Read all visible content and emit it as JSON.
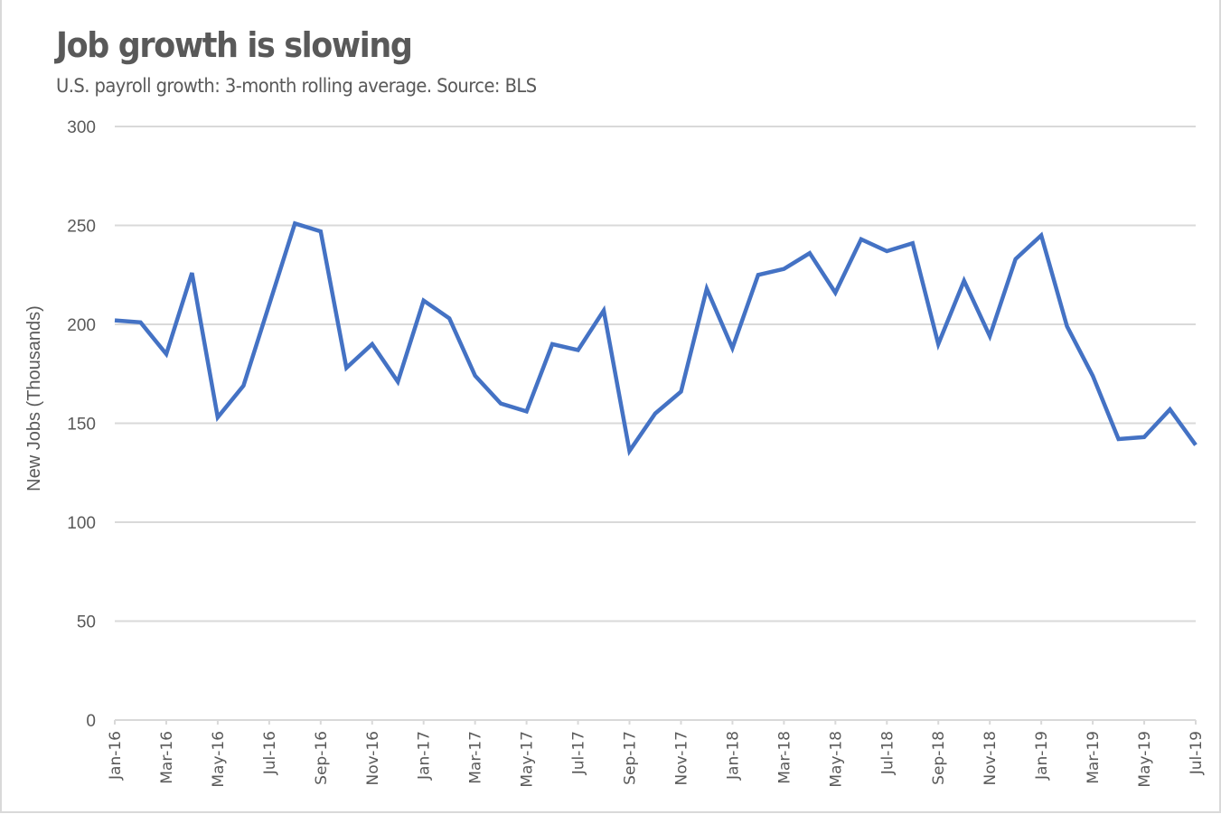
{
  "chart_data": {
    "type": "line",
    "title": "Job growth is slowing",
    "subtitle": "U.S. payroll growth: 3-month rolling average. Source: BLS",
    "xlabel": "",
    "ylabel": "New Jobs (Thousands)",
    "ylim": [
      0,
      300
    ],
    "yticks": [
      0,
      50,
      100,
      150,
      200,
      250,
      300
    ],
    "grid": true,
    "legend": "none",
    "line_color": "#4472C4",
    "x": [
      "Jan-16",
      "Feb-16",
      "Mar-16",
      "Apr-16",
      "May-16",
      "Jun-16",
      "Jul-16",
      "Aug-16",
      "Sep-16",
      "Oct-16",
      "Nov-16",
      "Dec-16",
      "Jan-17",
      "Feb-17",
      "Mar-17",
      "Apr-17",
      "May-17",
      "Jun-17",
      "Jul-17",
      "Aug-17",
      "Sep-17",
      "Oct-17",
      "Nov-17",
      "Dec-17",
      "Jan-18",
      "Feb-18",
      "Mar-18",
      "Apr-18",
      "May-18",
      "Jun-18",
      "Jul-18",
      "Aug-18",
      "Sep-18",
      "Oct-18",
      "Nov-18",
      "Dec-18",
      "Jan-19",
      "Feb-19",
      "Mar-19",
      "Apr-19",
      "May-19",
      "Jun-19",
      "Jul-19"
    ],
    "xtick_labels": [
      "Jan-16",
      "Mar-16",
      "May-16",
      "Jul-16",
      "Sep-16",
      "Nov-16",
      "Jan-17",
      "Mar-17",
      "May-17",
      "Jul-17",
      "Sep-17",
      "Nov-17",
      "Jan-18",
      "Mar-18",
      "May-18",
      "Jul-18",
      "Sep-18",
      "Nov-18",
      "Jan-19",
      "Mar-19",
      "May-19",
      "Jul-19"
    ],
    "series": [
      {
        "name": "3-month rolling average",
        "values": [
          202,
          201,
          185,
          226,
          153,
          169,
          210,
          251,
          247,
          178,
          190,
          171,
          212,
          203,
          174,
          160,
          156,
          190,
          187,
          207,
          136,
          155,
          166,
          218,
          188,
          225,
          228,
          236,
          216,
          243,
          237,
          241,
          190,
          222,
          194,
          233,
          245,
          199,
          174,
          142,
          143,
          157,
          139
        ]
      }
    ]
  }
}
